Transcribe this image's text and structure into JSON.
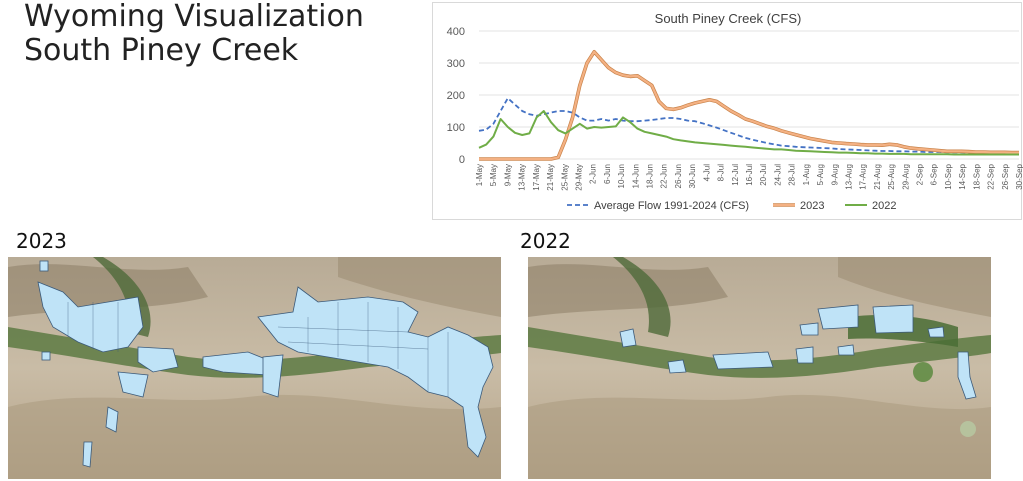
{
  "slide": {
    "title_line1": "Wyoming Visualization",
    "title_line2": "South Piney Creek"
  },
  "maps": [
    {
      "label": "2023"
    },
    {
      "label": "2022"
    }
  ],
  "colors": {
    "avg": "#4472c4",
    "y2023": "#f4b183",
    "y2023_border": "#c8834a",
    "y2022": "#70ad47",
    "parcel_fill": "#bfe3f7",
    "parcel_stroke": "#3b5a7a"
  },
  "chart_data": {
    "type": "line",
    "title": "South Piney Creek (CFS)",
    "ylim": [
      0,
      400
    ],
    "yticks": [
      0,
      100,
      200,
      300,
      400
    ],
    "x_ticks": [
      "1-May",
      "5-May",
      "9-May",
      "13-May",
      "17-May",
      "21-May",
      "25-May",
      "29-May",
      "2-Jun",
      "6-Jun",
      "10-Jun",
      "14-Jun",
      "18-Jun",
      "22-Jun",
      "26-Jun",
      "30-Jun",
      "4-Jul",
      "8-Jul",
      "12-Jul",
      "16-Jul",
      "20-Jul",
      "24-Jul",
      "28-Jul",
      "1-Aug",
      "5-Aug",
      "9-Aug",
      "13-Aug",
      "17-Aug",
      "21-Aug",
      "25-Aug",
      "29-Aug",
      "2-Sep",
      "6-Sep",
      "10-Sep",
      "14-Sep",
      "18-Sep",
      "22-Sep",
      "26-Sep",
      "30-Sep"
    ],
    "legend_position": "bottom",
    "series": [
      {
        "name": "Average Flow 1991-2024 (CFS)",
        "values": [
          88,
          92,
          110,
          150,
          190,
          170,
          150,
          140,
          135,
          140,
          145,
          150,
          150,
          145,
          130,
          120,
          120,
          125,
          120,
          125,
          120,
          118,
          118,
          120,
          122,
          125,
          128,
          128,
          125,
          120,
          118,
          112,
          105,
          98,
          90,
          82,
          74,
          66,
          60,
          55,
          50,
          46,
          42,
          40,
          38,
          37,
          36,
          35,
          34,
          33,
          31,
          30,
          29,
          28,
          27,
          26,
          25,
          25,
          24,
          24,
          23,
          23,
          22,
          22,
          22,
          21,
          21,
          21,
          20,
          20,
          20,
          20,
          20,
          20,
          20,
          20
        ]
      },
      {
        "name": "2023",
        "values": [
          0,
          0,
          0,
          0,
          0,
          0,
          0,
          0,
          0,
          0,
          0,
          5,
          60,
          130,
          230,
          300,
          335,
          310,
          285,
          270,
          262,
          258,
          260,
          245,
          230,
          180,
          158,
          155,
          160,
          168,
          175,
          180,
          185,
          180,
          165,
          150,
          138,
          125,
          118,
          110,
          102,
          96,
          88,
          82,
          76,
          70,
          64,
          60,
          56,
          52,
          50,
          48,
          47,
          45,
          44,
          44,
          43,
          46,
          44,
          38,
          34,
          32,
          30,
          28,
          26,
          24,
          24,
          24,
          23,
          22,
          22,
          21,
          21,
          21,
          20,
          20
        ]
      },
      {
        "name": "2022",
        "values": [
          35,
          45,
          70,
          125,
          100,
          82,
          75,
          80,
          130,
          150,
          115,
          90,
          80,
          95,
          110,
          95,
          100,
          98,
          100,
          102,
          130,
          115,
          95,
          85,
          80,
          75,
          70,
          62,
          58,
          55,
          52,
          50,
          48,
          46,
          44,
          42,
          40,
          38,
          36,
          34,
          32,
          30,
          30,
          28,
          26,
          25,
          24,
          23,
          22,
          21,
          20,
          20,
          19,
          18,
          18,
          17,
          17,
          16,
          16,
          16,
          15,
          15,
          15,
          15,
          15,
          15,
          14,
          14,
          14,
          14,
          14,
          14,
          14,
          14,
          14,
          14
        ]
      }
    ]
  }
}
